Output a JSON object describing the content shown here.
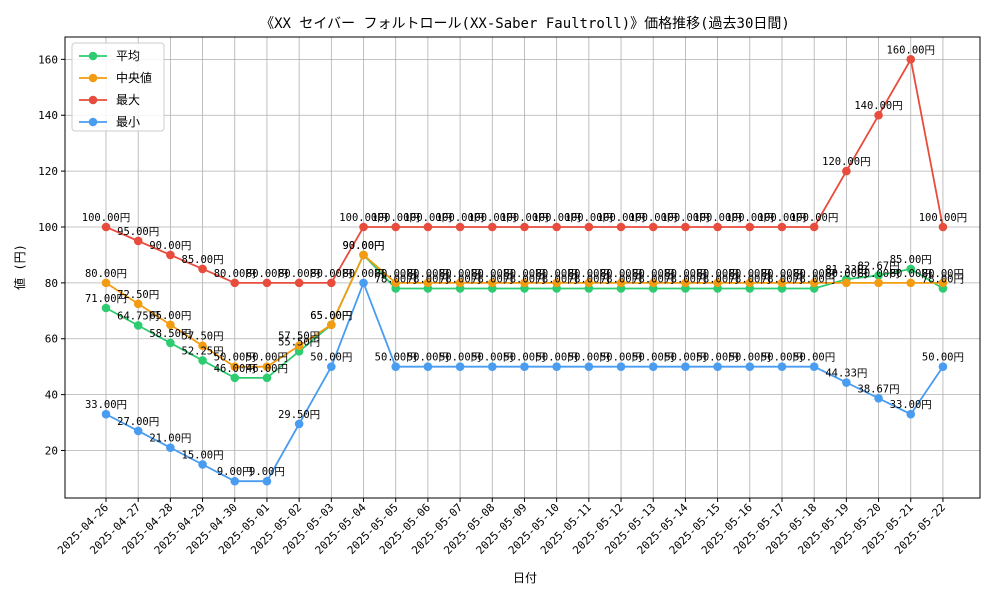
{
  "chart_data": {
    "type": "line",
    "title": "《XX セイバー フォルトロール(XX-Saber Faultroll)》価格推移(過去30日間)",
    "xlabel": "日付",
    "ylabel": "値 (円)",
    "ylim": [
      3,
      168
    ],
    "yticks": [
      20,
      40,
      60,
      80,
      100,
      120,
      140,
      160
    ],
    "grid": true,
    "legend_position": "top-left",
    "label_suffix": "円",
    "x": [
      "2025-04-26",
      "2025-04-27",
      "2025-04-28",
      "2025-04-29",
      "2025-04-30",
      "2025-05-01",
      "2025-05-02",
      "2025-05-03",
      "2025-05-04",
      "2025-05-05",
      "2025-05-06",
      "2025-05-07",
      "2025-05-08",
      "2025-05-09",
      "2025-05-10",
      "2025-05-11",
      "2025-05-12",
      "2025-05-13",
      "2025-05-14",
      "2025-05-15",
      "2025-05-16",
      "2025-05-17",
      "2025-05-18",
      "2025-05-19",
      "2025-05-20",
      "2025-05-21",
      "2025-05-22"
    ],
    "series": [
      {
        "name": "平均",
        "color": "#2ecc71",
        "values": [
          71.0,
          64.75,
          58.5,
          52.25,
          46.0,
          46.0,
          55.5,
          65.0,
          90.0,
          78.0,
          78.0,
          78.0,
          78.0,
          78.0,
          78.0,
          78.0,
          78.0,
          78.0,
          78.0,
          78.0,
          78.0,
          78.0,
          78.0,
          81.33,
          82.67,
          85.0,
          78.0
        ]
      },
      {
        "name": "中央値",
        "color": "#f39c12",
        "values": [
          80.0,
          72.5,
          65.0,
          57.5,
          50.0,
          50.0,
          57.5,
          65.0,
          90.0,
          80.0,
          80.0,
          80.0,
          80.0,
          80.0,
          80.0,
          80.0,
          80.0,
          80.0,
          80.0,
          80.0,
          80.0,
          80.0,
          80.0,
          80.0,
          80.0,
          80.0,
          80.0
        ]
      },
      {
        "name": "最大",
        "color": "#e74c3c",
        "values": [
          100.0,
          95.0,
          90.0,
          85.0,
          80.0,
          80.0,
          80.0,
          80.0,
          100.0,
          100.0,
          100.0,
          100.0,
          100.0,
          100.0,
          100.0,
          100.0,
          100.0,
          100.0,
          100.0,
          100.0,
          100.0,
          100.0,
          100.0,
          120.0,
          140.0,
          160.0,
          100.0
        ]
      },
      {
        "name": "最小",
        "color": "#4a9cf0",
        "values": [
          33.0,
          27.0,
          21.0,
          15.0,
          9.0,
          9.0,
          29.5,
          50.0,
          80.0,
          50.0,
          50.0,
          50.0,
          50.0,
          50.0,
          50.0,
          50.0,
          50.0,
          50.0,
          50.0,
          50.0,
          50.0,
          50.0,
          50.0,
          44.33,
          38.67,
          33.0,
          50.0
        ]
      }
    ]
  }
}
